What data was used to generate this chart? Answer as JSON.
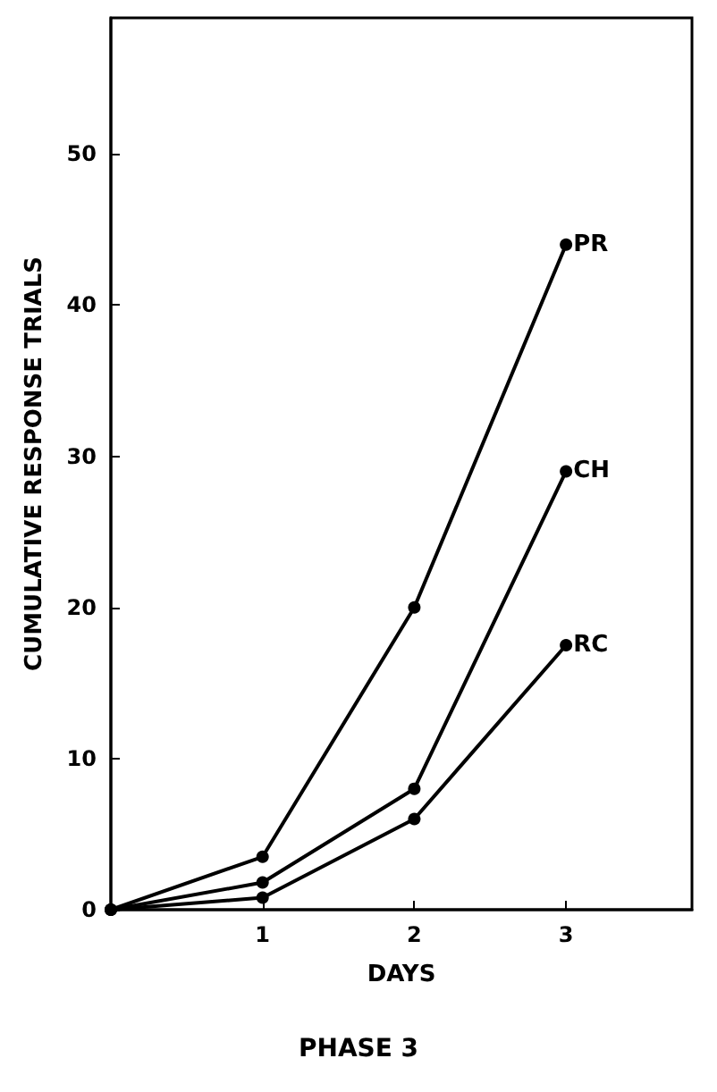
{
  "chart_data": {
    "type": "line",
    "title": "PHASE 3",
    "xlabel": "DAYS",
    "ylabel": "CUMULATIVE RESPONSE TRIALS",
    "x": [
      0,
      1,
      2,
      3
    ],
    "series": [
      {
        "name": "PR",
        "color": "#000000",
        "values": [
          0,
          3.5,
          20,
          44
        ]
      },
      {
        "name": "CH",
        "color": "#000000",
        "values": [
          0,
          1.8,
          8,
          29
        ]
      },
      {
        "name": "RC",
        "color": "#000000",
        "values": [
          0,
          0.8,
          6,
          17.5
        ]
      }
    ],
    "xlim": [
      0,
      3.83
    ],
    "xticks": [
      1,
      2,
      3
    ],
    "ylim": [
      0,
      59
    ],
    "yticks": [
      0,
      10,
      20,
      30,
      40,
      50
    ],
    "grid": false,
    "legend": false,
    "marker": "circle",
    "line_style": "solid"
  }
}
